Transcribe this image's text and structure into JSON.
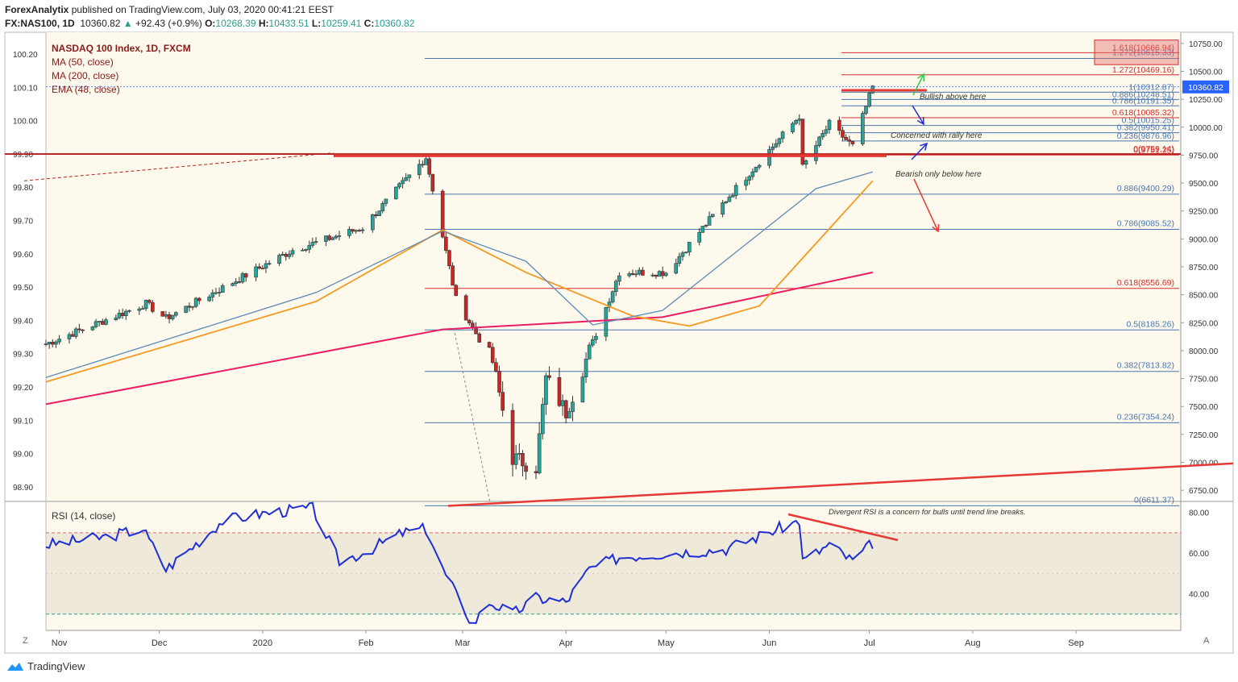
{
  "header": {
    "publisher": "ForexAnalytix",
    "published_text": "published on TradingView.com, July 03, 2020 00:41:21 EEST",
    "symbol": "FX:NAS100, 1D",
    "last": "10360.82",
    "change": "+92.43 (+0.9%)",
    "o_label": "O:",
    "o": "10268.39",
    "h_label": "H:",
    "h": "10433.51",
    "l_label": "L:",
    "l": "10259.41",
    "c_label": "C:",
    "c": "10360.82"
  },
  "legend": {
    "title": "NASDAQ 100 Index, 1D, FXCM",
    "ma50": "MA (50, close)",
    "ma200": "MA (200, close)",
    "ema48": "EMA (48, close)"
  },
  "rsi_legend": "RSI (14, close)",
  "footer": {
    "brand": "TradingView",
    "z": "Z",
    "a": "A"
  },
  "colors": {
    "up": "#26a69a",
    "down": "#c62828",
    "ma50": "#5b8ab5",
    "ma200": "#e91e63",
    "ema48": "#f59a23",
    "fib_blue": "#4a76b0",
    "fib_red": "#d32f2f",
    "rsi": "#1f2fd6",
    "bg": "#fdf9ec"
  },
  "chart_data": [
    {
      "type": "candlestick",
      "title": "NASDAQ 100 Index, 1D, FXCM",
      "x_ticks": [
        "Nov",
        "Dec",
        "2020",
        "Feb",
        "Mar",
        "Apr",
        "May",
        "Jun",
        "Jul",
        "Aug",
        "Sep"
      ],
      "price_ticks": [
        10750,
        10500,
        10250,
        10000,
        9750,
        9500,
        9250,
        9000,
        8750,
        8500,
        8250,
        8000,
        7750,
        7500,
        7250,
        7000,
        6750
      ],
      "left_ticks": [
        "100.20",
        "100.10",
        "100.00",
        "99.90",
        "99.80",
        "99.70",
        "99.60",
        "99.50",
        "99.40",
        "99.30",
        "99.20",
        "99.10",
        "99.00",
        "98.90"
      ],
      "ylim": [
        6650,
        10850
      ],
      "last_price": 10360.82,
      "path_key_points": [
        [
          "Oct 28 2019",
          8060
        ],
        [
          "Nov 27",
          8420
        ],
        [
          "Dec 03",
          8290
        ],
        [
          "Jan 10 2020",
          8900
        ],
        [
          "Jan 31",
          9100
        ],
        [
          "Feb 19",
          9730
        ],
        [
          "Feb 28",
          8460
        ],
        [
          "Mar 10",
          7900
        ],
        [
          "Mar 16",
          7040
        ],
        [
          "Mar 23",
          6960
        ],
        [
          "Mar 26",
          7750
        ],
        [
          "Apr 01",
          7450
        ],
        [
          "Apr 17",
          8700
        ],
        [
          "May 01",
          8700
        ],
        [
          "May 19",
          9350
        ],
        [
          "Jun 10",
          10100
        ],
        [
          "Jun 11",
          9640
        ],
        [
          "Jun 19",
          10030
        ],
        [
          "Jun 26",
          9830
        ],
        [
          "Jul 02",
          10360
        ]
      ],
      "ma50_points": [
        [
          "Oct 28 2019",
          7760
        ],
        [
          "Jan 17 2020",
          8520
        ],
        [
          "Feb 24",
          9070
        ],
        [
          "Mar 20",
          8800
        ],
        [
          "Apr 09",
          8230
        ],
        [
          "Apr 30",
          8360
        ],
        [
          "Jun 15",
          9450
        ],
        [
          "Jul 02",
          9600
        ]
      ],
      "ma200_points": [
        [
          "Oct 28 2019",
          7520
        ],
        [
          "Feb 24 2020",
          8190
        ],
        [
          "Apr 30",
          8300
        ],
        [
          "Jul 02",
          8700
        ]
      ],
      "ema48_points": [
        [
          "Oct 28 2019",
          7720
        ],
        [
          "Jan 17 2020",
          8440
        ],
        [
          "Feb 24",
          9080
        ],
        [
          "Mar 20",
          8700
        ],
        [
          "Apr 21",
          8310
        ],
        [
          "May 08",
          8220
        ],
        [
          "May 29",
          8400
        ],
        [
          "Jul 02",
          9520
        ]
      ],
      "fib_levels": [
        {
          "ratio": "0",
          "value": 6611.37,
          "label": "0(6611.37)"
        },
        {
          "ratio": "0.236",
          "value": 7354.24,
          "label": "0.236(7354.24)"
        },
        {
          "ratio": "0.382",
          "value": 7813.82,
          "label": "0.382(7813.82)"
        },
        {
          "ratio": "0.5",
          "value": 8185.26,
          "label": "0.5(8185.26)"
        },
        {
          "ratio": "0.618",
          "value": 8556.69,
          "label": "0.618(8556.69)"
        },
        {
          "ratio": "0.786",
          "value": 9085.52,
          "label": "0.786(9085.52)"
        },
        {
          "ratio": "0.886",
          "value": 9400.29,
          "label": "0.886(9400.29)"
        },
        {
          "ratio": "1.272",
          "value": 10615.33,
          "label": "1.272(10615.33)"
        }
      ],
      "fib_levels_2": [
        {
          "value": 9751.25,
          "label": "0(9751.25)"
        },
        {
          "value": 9759.14,
          "label": "0(9759.14)"
        },
        {
          "value": 9876.96,
          "label": "0.236(9876.96)"
        },
        {
          "value": 9950.41,
          "label": "0.382(9950.41)"
        },
        {
          "value": 10015.25,
          "label": "0.5(10015.25)"
        },
        {
          "value": 10085.32,
          "label": "0.618(10085.32)"
        },
        {
          "value": 10191.35,
          "label": "0.786(10191.35)"
        },
        {
          "value": 10248.51,
          "label": "0.886(10248.51)"
        },
        {
          "value": 10312.87,
          "label": "1(10312.87)"
        },
        {
          "value": 10469.16,
          "label": "1.272(10469.16)"
        },
        {
          "value": 10666.94,
          "label": "1.618(10666.94)"
        }
      ],
      "annotations": [
        "Bullish above here",
        "Concerned with rally here",
        "Bearish only below here"
      ]
    },
    {
      "type": "line",
      "title": "RSI (14, close)",
      "y_ticks": [
        80,
        60,
        40
      ],
      "overbought": 70,
      "oversold": 30,
      "ylim": [
        22,
        85
      ],
      "points": [
        [
          "Oct 28 2019",
          64
        ],
        [
          "Nov 15",
          68
        ],
        [
          "Nov 26",
          72
        ],
        [
          "Dec 03",
          52
        ],
        [
          "Dec 13",
          66
        ],
        [
          "Dec 20",
          76
        ],
        [
          "Jan 03 2020",
          80
        ],
        [
          "Jan 16",
          82
        ],
        [
          "Jan 24",
          56
        ],
        [
          "Jan 31",
          60
        ],
        [
          "Feb 12",
          70
        ],
        [
          "Feb 19",
          72
        ],
        [
          "Feb 24",
          52
        ],
        [
          "Feb 28",
          40
        ],
        [
          "Mar 04",
          25
        ],
        [
          "Mar 09",
          36
        ],
        [
          "Mar 16",
          30
        ],
        [
          "Mar 23",
          38
        ],
        [
          "Apr 01",
          36
        ],
        [
          "Apr 08",
          52
        ],
        [
          "Apr 17",
          58
        ],
        [
          "May 01",
          60
        ],
        [
          "May 19",
          62
        ],
        [
          "Jun 10",
          76
        ],
        [
          "Jun 11",
          56
        ],
        [
          "Jun 19",
          64
        ],
        [
          "Jun 26",
          56
        ],
        [
          "Jul 02",
          65
        ]
      ],
      "annotation": "Divergent RSI is a concern for bulls until trend line breaks."
    }
  ]
}
